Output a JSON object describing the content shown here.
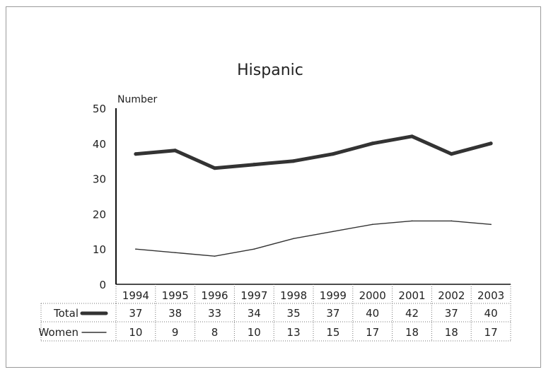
{
  "chart_data": {
    "type": "line",
    "title": "Hispanic",
    "ylabel": "Number",
    "xlabel": "",
    "ylim": [
      0,
      50
    ],
    "yticks": [
      0,
      10,
      20,
      30,
      40,
      50
    ],
    "x": [
      "1994",
      "1995",
      "1996",
      "1997",
      "1998",
      "1999",
      "2000",
      "2001",
      "2002",
      "2003"
    ],
    "series": [
      {
        "name": "Total",
        "values": [
          37,
          38,
          33,
          34,
          35,
          37,
          40,
          42,
          37,
          40
        ],
        "color": "#333333",
        "line": "thick"
      },
      {
        "name": "Women",
        "values": [
          10,
          9,
          8,
          10,
          13,
          15,
          17,
          18,
          18,
          17
        ],
        "color": "#333333",
        "line": "thin"
      }
    ],
    "grid": false,
    "legend": "data-table-bottom"
  }
}
